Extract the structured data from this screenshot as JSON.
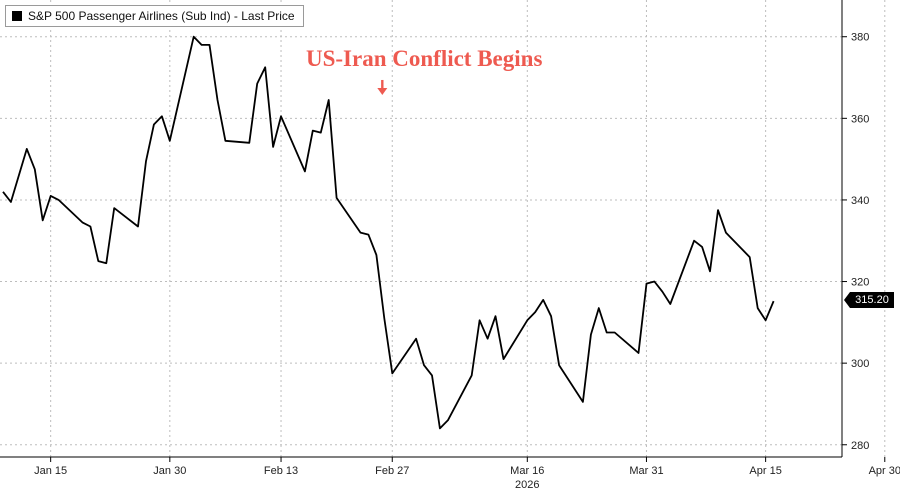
{
  "legend": {
    "label": "S&P 500 Passenger Airlines (Sub Ind) - Last Price"
  },
  "annotation": {
    "text": "US-Iran Conflict Begins",
    "color": "#ee5a50"
  },
  "last_price": {
    "label": "315.20"
  },
  "colors": {
    "line": "#000000",
    "grid": "#bdbdbd",
    "accent": "#ee5a50"
  },
  "chart_data": {
    "type": "line",
    "title": "",
    "xlabel": "2026",
    "ylabel": "",
    "ylim": [
      277,
      389
    ],
    "xlim": [
      "2026-01-09",
      "2026-05-09"
    ],
    "grid": true,
    "legend_position": "top-left",
    "y_axis_side": "right",
    "y_ticks": [
      280,
      300,
      320,
      340,
      360,
      380
    ],
    "x_ticks": [
      {
        "date": "2026-01-15",
        "label": "Jan 15"
      },
      {
        "date": "2026-01-30",
        "label": "Jan 30"
      },
      {
        "date": "2026-02-13",
        "label": "Feb 13"
      },
      {
        "date": "2026-02-27",
        "label": "Feb 27"
      },
      {
        "date": "2026-03-16",
        "label": "Mar 16"
      },
      {
        "date": "2026-03-31",
        "label": "Mar 31"
      },
      {
        "date": "2026-04-15",
        "label": "Apr 15"
      },
      {
        "date": "2026-04-30",
        "label": "Apr 30"
      }
    ],
    "x_sublabel": {
      "label": "2026",
      "date": "2026-03-16"
    },
    "annotation": {
      "text": "US-Iran Conflict Begins",
      "date": "2026-02-26",
      "value": 364.5
    },
    "series": [
      {
        "name": "S&P 500 Passenger Airlines (Sub Ind) - Last Price",
        "last_value": 315.2,
        "points": [
          [
            "2026-01-09",
            342.0
          ],
          [
            "2026-01-10",
            339.5
          ],
          [
            "2026-01-12",
            352.5
          ],
          [
            "2026-01-13",
            347.5
          ],
          [
            "2026-01-14",
            335.0
          ],
          [
            "2026-01-15",
            341.0
          ],
          [
            "2026-01-16",
            340.0
          ],
          [
            "2026-01-19",
            334.5
          ],
          [
            "2026-01-20",
            333.5
          ],
          [
            "2026-01-21",
            325.0
          ],
          [
            "2026-01-22",
            324.5
          ],
          [
            "2026-01-23",
            338.0
          ],
          [
            "2026-01-26",
            333.5
          ],
          [
            "2026-01-27",
            349.5
          ],
          [
            "2026-01-28",
            358.5
          ],
          [
            "2026-01-29",
            360.5
          ],
          [
            "2026-01-30",
            354.5
          ],
          [
            "2026-02-02",
            380.0
          ],
          [
            "2026-02-03",
            378.0
          ],
          [
            "2026-02-04",
            378.0
          ],
          [
            "2026-02-05",
            364.5
          ],
          [
            "2026-02-06",
            354.5
          ],
          [
            "2026-02-09",
            354.0
          ],
          [
            "2026-02-10",
            368.5
          ],
          [
            "2026-02-11",
            372.5
          ],
          [
            "2026-02-12",
            353.0
          ],
          [
            "2026-02-13",
            360.5
          ],
          [
            "2026-02-16",
            347.0
          ],
          [
            "2026-02-17",
            357.0
          ],
          [
            "2026-02-18",
            356.5
          ],
          [
            "2026-02-19",
            364.5
          ],
          [
            "2026-02-20",
            340.5
          ],
          [
            "2026-02-23",
            332.0
          ],
          [
            "2026-02-24",
            331.5
          ],
          [
            "2026-02-25",
            326.5
          ],
          [
            "2026-02-26",
            311.0
          ],
          [
            "2026-02-27",
            297.5
          ],
          [
            "2026-03-02",
            306.0
          ],
          [
            "2026-03-03",
            299.5
          ],
          [
            "2026-03-04",
            297.0
          ],
          [
            "2026-03-05",
            284.0
          ],
          [
            "2026-03-06",
            286.0
          ],
          [
            "2026-03-09",
            297.0
          ],
          [
            "2026-03-10",
            310.5
          ],
          [
            "2026-03-11",
            306.0
          ],
          [
            "2026-03-12",
            311.5
          ],
          [
            "2026-03-13",
            301.0
          ],
          [
            "2026-03-16",
            310.5
          ],
          [
            "2026-03-17",
            312.5
          ],
          [
            "2026-03-18",
            315.5
          ],
          [
            "2026-03-19",
            311.5
          ],
          [
            "2026-03-20",
            299.5
          ],
          [
            "2026-03-23",
            290.5
          ],
          [
            "2026-03-24",
            307.0
          ],
          [
            "2026-03-25",
            313.5
          ],
          [
            "2026-03-26",
            307.5
          ],
          [
            "2026-03-27",
            307.5
          ],
          [
            "2026-03-30",
            302.5
          ],
          [
            "2026-03-31",
            319.5
          ],
          [
            "2026-04-01",
            320.0
          ],
          [
            "2026-04-02",
            317.5
          ],
          [
            "2026-04-03",
            314.5
          ],
          [
            "2026-04-06",
            330.0
          ],
          [
            "2026-04-07",
            328.5
          ],
          [
            "2026-04-08",
            322.5
          ],
          [
            "2026-04-09",
            337.5
          ],
          [
            "2026-04-10",
            332.0
          ],
          [
            "2026-04-13",
            326.0
          ],
          [
            "2026-04-14",
            313.5
          ],
          [
            "2026-04-15",
            310.5
          ],
          [
            "2026-04-16",
            315.2
          ]
        ]
      }
    ]
  }
}
